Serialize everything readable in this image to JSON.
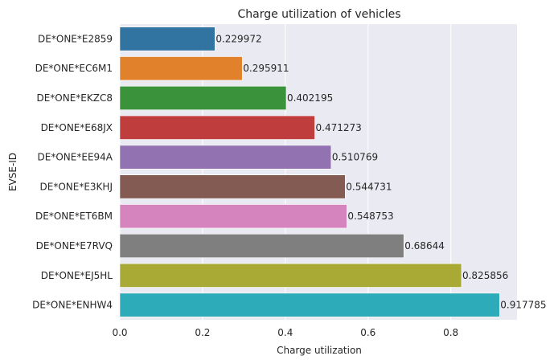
{
  "chart_data": {
    "type": "bar",
    "orientation": "horizontal",
    "title": "Charge utilization of vehicles",
    "xlabel": "Charge utilization",
    "ylabel": "EVSE-ID",
    "xlim": [
      0,
      0.96
    ],
    "xticks": [
      0.0,
      0.2,
      0.4,
      0.6,
      0.8
    ],
    "xtick_labels": [
      "0.0",
      "0.2",
      "0.4",
      "0.6",
      "0.8"
    ],
    "grid": true,
    "categories": [
      "DE*ONE*E2859",
      "DE*ONE*EC6M1",
      "DE*ONE*EKZC8",
      "DE*ONE*E68JX",
      "DE*ONE*EE94A",
      "DE*ONE*E3KHJ",
      "DE*ONE*ET6BM",
      "DE*ONE*E7RVQ",
      "DE*ONE*EJ5HL",
      "DE*ONE*ENHW4"
    ],
    "values": [
      0.229972,
      0.295911,
      0.402195,
      0.471273,
      0.510769,
      0.544731,
      0.548753,
      0.68644,
      0.825856,
      0.917785
    ],
    "value_labels": [
      "0.229972",
      "0.295911",
      "0.402195",
      "0.471273",
      "0.510769",
      "0.544731",
      "0.548753",
      "0.68644",
      "0.825856",
      "0.917785"
    ],
    "colors": [
      "#3274a1",
      "#e1812c",
      "#3a923a",
      "#c03d3e",
      "#9372b2",
      "#845b53",
      "#d684bd",
      "#7f7f7f",
      "#a9aa35",
      "#2eabb8"
    ],
    "background_color": "#eaeaf2",
    "grid_color": "#ffffff"
  }
}
